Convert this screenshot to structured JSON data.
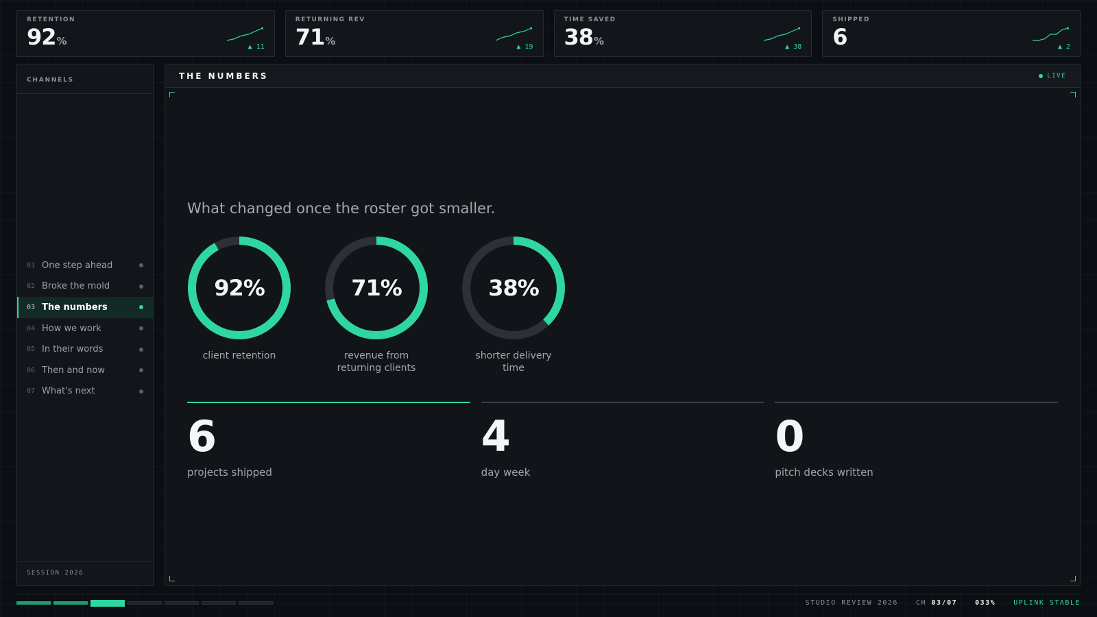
{
  "kpis": [
    {
      "label": "RETENTION",
      "value": "92",
      "unit": "%",
      "delta": "▲ 11",
      "trend": [
        2,
        3,
        5,
        6,
        8,
        10
      ]
    },
    {
      "label": "RETURNING REV",
      "value": "71",
      "unit": "%",
      "delta": "▲ 19",
      "trend": [
        2,
        4,
        5,
        7,
        8,
        10
      ]
    },
    {
      "label": "TIME SAVED",
      "value": "38",
      "unit": "%",
      "delta": "▲ 38",
      "trend": [
        2,
        3,
        5,
        6,
        8,
        10
      ]
    },
    {
      "label": "SHIPPED",
      "value": "6",
      "unit": "",
      "delta": "▲ 2",
      "trend": [
        1,
        1,
        2,
        5,
        5,
        8,
        9
      ]
    }
  ],
  "sidebar": {
    "title": "CHANNELS",
    "footer": "SESSION 2026",
    "items": [
      {
        "num": "01",
        "label": "One step ahead",
        "active": false
      },
      {
        "num": "02",
        "label": "Broke the mold",
        "active": false
      },
      {
        "num": "03",
        "label": "The numbers",
        "active": true
      },
      {
        "num": "04",
        "label": "How we work",
        "active": false
      },
      {
        "num": "05",
        "label": "In their words",
        "active": false
      },
      {
        "num": "06",
        "label": "Then and now",
        "active": false
      },
      {
        "num": "07",
        "label": "What's next",
        "active": false
      }
    ]
  },
  "main": {
    "title": "THE NUMBERS",
    "live_label": "LIVE",
    "headline": "What changed once the roster got smaller.",
    "donuts": [
      {
        "value": "92%",
        "percent": 92,
        "label": "client retention"
      },
      {
        "value": "71%",
        "percent": 71,
        "label": "revenue from returning clients"
      },
      {
        "value": "38%",
        "percent": 38,
        "label": "shorter delivery time"
      }
    ],
    "stats": [
      {
        "value": "6",
        "label": "projects shipped",
        "active": true
      },
      {
        "value": "4",
        "label": "day week",
        "active": false
      },
      {
        "value": "0",
        "label": "pitch decks written",
        "active": false
      }
    ]
  },
  "footer": {
    "progress": {
      "total": 7,
      "current": 3
    },
    "studio": "STUDIO REVIEW 2026",
    "ch_label": "CH",
    "ch_value": "03/07",
    "percent": "033%",
    "uplink": "UPLINK STABLE"
  },
  "colors": {
    "accent": "#2fd6a1",
    "track": "#2c3137"
  }
}
